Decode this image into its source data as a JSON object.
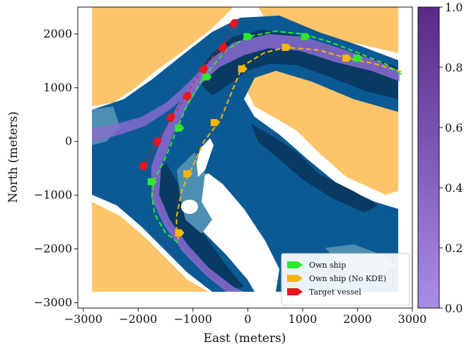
{
  "chart_data": {
    "type": "map-trajectory",
    "xlabel": "East (meters)",
    "ylabel": "North (meters)",
    "xlim": [
      -3100,
      3000
    ],
    "ylim": [
      -3100,
      2500
    ],
    "x_ticks": [
      -3000,
      -2000,
      -1000,
      0,
      1000,
      2000,
      3000
    ],
    "y_ticks": [
      -3000,
      -2000,
      -1000,
      0,
      1000,
      2000
    ],
    "x_tick_labels": [
      "−3000",
      "−2000",
      "−1000",
      "0",
      "1000",
      "2000",
      "3000"
    ],
    "y_tick_labels": [
      "−3000",
      "−2000",
      "−1000",
      "0",
      "1000",
      "2000"
    ],
    "colorbar": {
      "range": [
        0.0,
        1.0
      ],
      "ticks": [
        0.0,
        0.2,
        0.4,
        0.6,
        0.8,
        1.0
      ],
      "tick_labels": [
        "0.0",
        "0.2",
        "0.4",
        "0.6",
        "0.8",
        "1.0"
      ],
      "color_low": "#a98de8",
      "color_high": "#5a2a86"
    },
    "colors": {
      "land": "#fdc56b",
      "deep_water": "#0b5a94",
      "darker_water": "#083a62",
      "shallow_water": "#4d8fb1",
      "kde_band": "#8a6bd0",
      "own_ship": "#2ee82e",
      "own_ship_no_kde": "#f5b800",
      "target_vessel": "#e8141e"
    },
    "legend": {
      "position": "lower-right",
      "entries": [
        "Own ship",
        "Own ship (No KDE)",
        "Target vessel"
      ]
    },
    "series": [
      {
        "name": "Own ship",
        "x": [
          2800,
          2500,
          2000,
          1500,
          1000,
          500,
          0,
          -400,
          -800,
          -1100,
          -1300,
          -1500,
          -1700,
          -1750,
          -1700,
          -1500,
          -1250
        ],
        "y": [
          1250,
          1450,
          1650,
          1850,
          2000,
          2050,
          1950,
          1700,
          1200,
          700,
          200,
          -300,
          -700,
          -1000,
          -1350,
          -1700,
          -1900
        ]
      },
      {
        "name": "Own ship (No KDE)",
        "x": [
          2800,
          2300,
          1800,
          1300,
          700,
          300,
          -100,
          -300,
          -500,
          -800,
          -1000,
          -1200,
          -1300,
          -1300,
          -1250
        ],
        "y": [
          1300,
          1450,
          1550,
          1700,
          1750,
          1650,
          1400,
          900,
          400,
          0,
          -450,
          -900,
          -1400,
          -1700,
          -1850
        ]
      },
      {
        "name": "Target vessel",
        "x": [
          -250,
          -450,
          -800,
          -1100,
          -1400,
          -1650,
          -1900
        ],
        "y": [
          2200,
          1800,
          1400,
          900,
          400,
          0,
          -450
        ]
      }
    ],
    "markers": {
      "Own ship": {
        "x": [
          2000,
          1050,
          0,
          -750,
          -1250,
          -1750,
          -1250
        ],
        "y": [
          1550,
          1950,
          1950,
          1200,
          250,
          -750,
          -1700
        ]
      },
      "Own ship (No KDE)": {
        "x": [
          1800,
          700,
          -100,
          -600,
          -1100,
          -1250
        ],
        "y": [
          1550,
          1750,
          1350,
          350,
          -600,
          -1700
        ]
      },
      "Target vessel": {
        "x": [
          -250,
          -450,
          -800,
          -1100,
          -1400,
          -1650,
          -1900
        ],
        "y": [
          2200,
          1750,
          1350,
          850,
          450,
          0,
          -450
        ]
      }
    }
  }
}
